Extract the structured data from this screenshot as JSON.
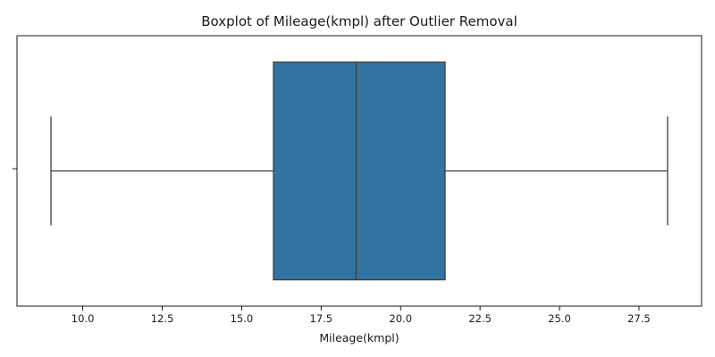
{
  "chart_data": {
    "type": "boxplot",
    "title": "Boxplot of Mileage(kmpl) after Outlier Removal",
    "xlabel": "Mileage(kmpl)",
    "ylabel": "",
    "orientation": "horizontal",
    "xlim": [
      7.93,
      29.47
    ],
    "xticks": [
      10.0,
      12.5,
      15.0,
      17.5,
      20.0,
      22.5,
      25.0,
      27.5
    ],
    "xtick_labels": [
      "10.0",
      "12.5",
      "15.0",
      "17.5",
      "20.0",
      "22.5",
      "25.0",
      "27.5"
    ],
    "grid": false,
    "box": {
      "whisker_low": 9.0,
      "q1": 16.0,
      "median": 18.6,
      "q3": 21.4,
      "whisker_high": 28.4
    },
    "colors": {
      "box_fill": "#3274a1",
      "lines": "#3f3f3f",
      "axes": "#000000"
    }
  }
}
